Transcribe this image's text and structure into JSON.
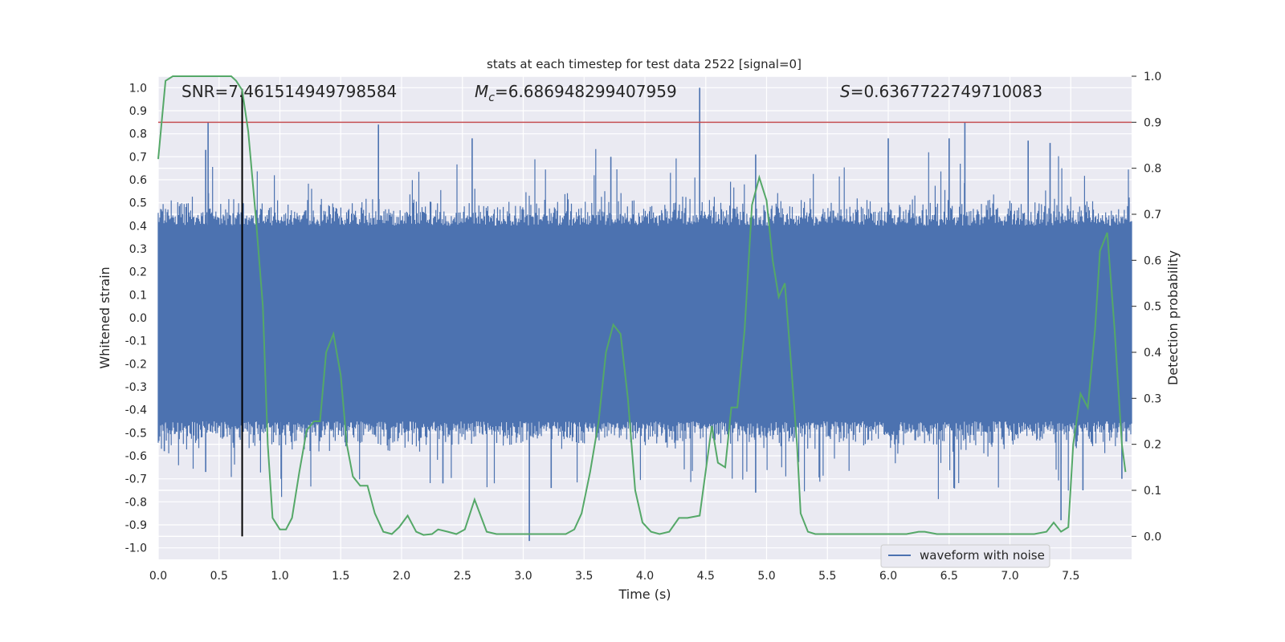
{
  "chart_data": {
    "type": "line",
    "title": "stats at each timestep for test data 2522 [signal=0]",
    "xlabel": "Time (s)",
    "ylabel_left": "Whitened strain",
    "ylabel_right": "Detection probability",
    "xlim": [
      0,
      8.0
    ],
    "ylim_left": [
      -1.05,
      1.05
    ],
    "ylim_right": [
      -0.05,
      1.0
    ],
    "x_ticks": [
      "0.0",
      "0.5",
      "1.0",
      "1.5",
      "2.0",
      "2.5",
      "3.0",
      "3.5",
      "4.0",
      "4.5",
      "5.0",
      "5.5",
      "6.0",
      "6.5",
      "7.0",
      "7.5"
    ],
    "y_ticks_left": [
      "1.0",
      "0.9",
      "0.8",
      "0.7",
      "0.6",
      "0.5",
      "0.4",
      "0.3",
      "0.2",
      "0.1",
      "0.0",
      "-0.1",
      "-0.2",
      "-0.3",
      "-0.4",
      "-0.5",
      "-0.6",
      "-0.7",
      "-0.8",
      "-0.9",
      "-1.0"
    ],
    "y_ticks_right": [
      "1.0",
      "0.9",
      "0.8",
      "0.7",
      "0.6",
      "0.5",
      "0.4",
      "0.3",
      "0.2",
      "0.1",
      "0.0"
    ],
    "annotations": {
      "snr": "SNR=7.461514949798584",
      "mc_symbol": "M",
      "mc_sub": "c",
      "mc_value": "=6.686948299407959",
      "s_symbol": "S",
      "s_value": "=0.6367722749710083"
    },
    "legend": {
      "label": "waveform with noise",
      "placement": "lower-right"
    },
    "grid": true,
    "threshold": {
      "axis": "right",
      "value": 0.9,
      "color": "#c44e52"
    },
    "marker_line": {
      "x": 0.69,
      "color": "#000000"
    },
    "series": [
      {
        "name": "waveform with noise",
        "axis": "left",
        "color": "#4c72b0",
        "kind": "noise",
        "points": 1200,
        "typical_amplitude": 0.4,
        "spikes": [
          {
            "x": 0.41,
            "y": 0.85
          },
          {
            "x": 0.39,
            "y": 0.73
          },
          {
            "x": 1.81,
            "y": 0.84
          },
          {
            "x": 2.58,
            "y": 0.78
          },
          {
            "x": 4.45,
            "y": 1.0
          },
          {
            "x": 6.63,
            "y": 0.85
          },
          {
            "x": 6.0,
            "y": 0.78
          },
          {
            "x": 6.5,
            "y": 0.78
          },
          {
            "x": 7.15,
            "y": 0.77
          },
          {
            "x": 7.33,
            "y": 0.76
          },
          {
            "x": 3.72,
            "y": 0.7
          },
          {
            "x": 4.91,
            "y": 0.71
          },
          {
            "x": 0.39,
            "y": -0.67
          },
          {
            "x": 3.05,
            "y": -0.97
          },
          {
            "x": 3.23,
            "y": -0.74
          },
          {
            "x": 4.91,
            "y": -0.76
          },
          {
            "x": 6.54,
            "y": -0.74
          },
          {
            "x": 7.42,
            "y": -0.88
          },
          {
            "x": 7.6,
            "y": -0.75
          },
          {
            "x": 1.01,
            "y": -0.7
          },
          {
            "x": 2.34,
            "y": -0.72
          },
          {
            "x": 7.92,
            "y": -0.7
          },
          {
            "x": 0.05,
            "y": -0.58
          }
        ]
      },
      {
        "name": "",
        "axis": "right",
        "color": "#55a868",
        "kind": "line",
        "x": [
          0.0,
          0.06,
          0.12,
          0.2,
          0.3,
          0.4,
          0.5,
          0.6,
          0.64,
          0.69,
          0.74,
          0.8,
          0.86,
          0.9,
          0.94,
          1.0,
          1.05,
          1.1,
          1.16,
          1.22,
          1.28,
          1.33,
          1.38,
          1.44,
          1.5,
          1.55,
          1.6,
          1.66,
          1.72,
          1.78,
          1.85,
          1.92,
          1.98,
          2.05,
          2.12,
          2.18,
          2.25,
          2.3,
          2.38,
          2.45,
          2.52,
          2.6,
          2.7,
          2.78,
          2.85,
          2.95,
          3.05,
          3.2,
          3.35,
          3.42,
          3.48,
          3.55,
          3.62,
          3.68,
          3.74,
          3.8,
          3.86,
          3.92,
          3.98,
          4.05,
          4.12,
          4.2,
          4.28,
          4.35,
          4.45,
          4.55,
          4.6,
          4.66,
          4.71,
          4.76,
          4.82,
          4.88,
          4.94,
          5.0,
          5.05,
          5.1,
          5.15,
          5.2,
          5.25,
          5.28,
          5.34,
          5.4,
          5.55,
          5.7,
          5.8,
          6.0,
          6.15,
          6.25,
          6.3,
          6.4,
          6.6,
          6.8,
          7.0,
          7.2,
          7.3,
          7.36,
          7.42,
          7.48,
          7.52,
          7.58,
          7.64,
          7.7,
          7.74,
          7.8,
          7.86,
          7.92,
          7.95
        ],
        "y": [
          0.82,
          0.99,
          1.0,
          1.0,
          1.0,
          1.0,
          1.0,
          1.0,
          0.99,
          0.97,
          0.88,
          0.7,
          0.5,
          0.2,
          0.04,
          0.015,
          0.015,
          0.04,
          0.14,
          0.23,
          0.25,
          0.25,
          0.4,
          0.44,
          0.35,
          0.2,
          0.13,
          0.11,
          0.11,
          0.05,
          0.01,
          0.005,
          0.02,
          0.045,
          0.01,
          0.003,
          0.005,
          0.015,
          0.01,
          0.005,
          0.015,
          0.08,
          0.01,
          0.005,
          0.005,
          0.005,
          0.005,
          0.005,
          0.005,
          0.015,
          0.05,
          0.14,
          0.25,
          0.4,
          0.46,
          0.44,
          0.3,
          0.1,
          0.03,
          0.01,
          0.005,
          0.01,
          0.04,
          0.04,
          0.045,
          0.24,
          0.16,
          0.15,
          0.28,
          0.28,
          0.45,
          0.72,
          0.78,
          0.73,
          0.6,
          0.52,
          0.55,
          0.38,
          0.2,
          0.05,
          0.01,
          0.005,
          0.005,
          0.005,
          0.005,
          0.005,
          0.005,
          0.01,
          0.01,
          0.005,
          0.005,
          0.005,
          0.005,
          0.005,
          0.01,
          0.03,
          0.01,
          0.02,
          0.2,
          0.31,
          0.28,
          0.45,
          0.62,
          0.66,
          0.45,
          0.2,
          0.14
        ]
      }
    ]
  }
}
